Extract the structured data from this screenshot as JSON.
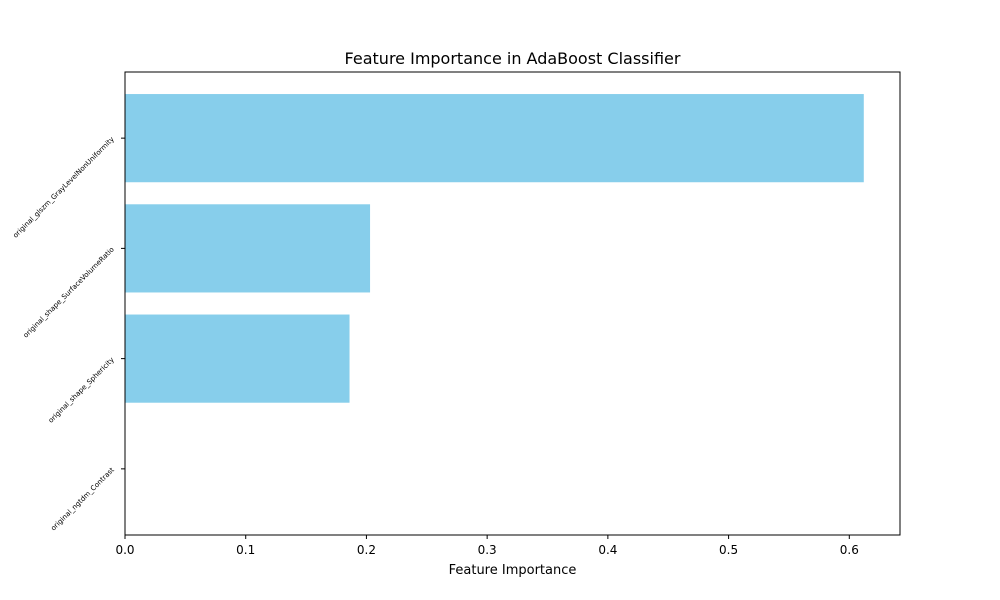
{
  "chart_data": {
    "type": "bar",
    "orientation": "horizontal",
    "title": "Feature Importance in AdaBoost Classifier",
    "xlabel": "Feature Importance",
    "ylabel": "",
    "categories": [
      "original_glszm_GrayLevelNonUniformity",
      "original_shape_SurfaceVolumeRatio",
      "original_shape_Sphericity",
      "original_ngtdm_Contrast"
    ],
    "values": [
      0.612,
      0.203,
      0.186,
      0.0
    ],
    "xlim": [
      0,
      0.642
    ],
    "xticks": [
      0.0,
      0.1,
      0.2,
      0.3,
      0.4,
      0.5,
      0.6
    ],
    "xtick_labels": [
      "0.0",
      "0.1",
      "0.2",
      "0.3",
      "0.4",
      "0.5",
      "0.6"
    ],
    "grid": false,
    "bar_color": "#87CEEB"
  }
}
